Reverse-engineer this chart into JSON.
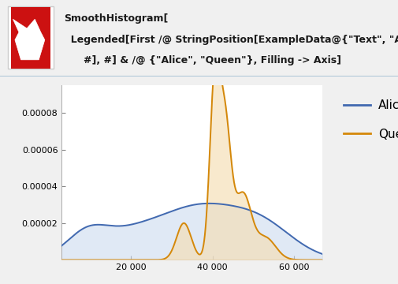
{
  "header_bg": "#dce8f0",
  "plot_bg": "#ffffff",
  "alice_color": "#4169b0",
  "alice_fill": "#c8d8ee",
  "queen_color": "#d4880a",
  "queen_fill": "#f5deb3",
  "alice_fill_alpha": 0.55,
  "queen_fill_alpha": 0.65,
  "xlim": [
    3000,
    67000
  ],
  "ylim": [
    0,
    9.5e-05
  ],
  "yticks": [
    2e-05,
    4e-05,
    6e-05,
    8e-05
  ],
  "xticks": [
    20000,
    40000,
    60000
  ],
  "legend_labels": [
    "Alice",
    "Queen"
  ],
  "title_line1": "SmoothHistogram[",
  "title_line2": "  Legended[First /@ StringPosition[ExampleData@{\"Text\", \"AliceInWonderland\"},",
  "title_line3": "  #], #] & /@ {\"Alice\", \"Queen\"}, Filling -> Axis]",
  "figsize": [
    5.05,
    3.6
  ],
  "dpi": 100
}
